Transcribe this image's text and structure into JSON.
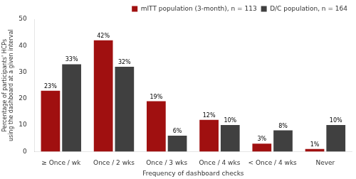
{
  "chart_data": {
    "type": "bar",
    "categories": [
      "≥ Once / wk",
      "Once / 2 wks",
      "Once / 3 wks",
      "Once / 4 wks",
      "< Once / 4 wks",
      "Never"
    ],
    "series": [
      {
        "name": "mITT population (3-month), n = 113",
        "color": "#A01010",
        "values": [
          23,
          42,
          19,
          12,
          3,
          1
        ],
        "value_labels": [
          "23%",
          "42%",
          "19%",
          "12%",
          "3%",
          "1%"
        ]
      },
      {
        "name": "D/C population, n = 164",
        "color": "#404040",
        "values": [
          33,
          32,
          6,
          10,
          8,
          10
        ],
        "value_labels": [
          "33%",
          "32%",
          "6%",
          "10%",
          "8%",
          "10%"
        ]
      }
    ],
    "xlabel": "Frequency of dashboard checks",
    "ylabel": "Percentage of participants' HCPs\nusing the dashboard at a given interval",
    "ylim": [
      0,
      50
    ],
    "yticks": [
      0,
      10,
      20,
      30,
      40,
      50
    ],
    "grid": false,
    "legend": "upper right",
    "data_labels": true
  }
}
